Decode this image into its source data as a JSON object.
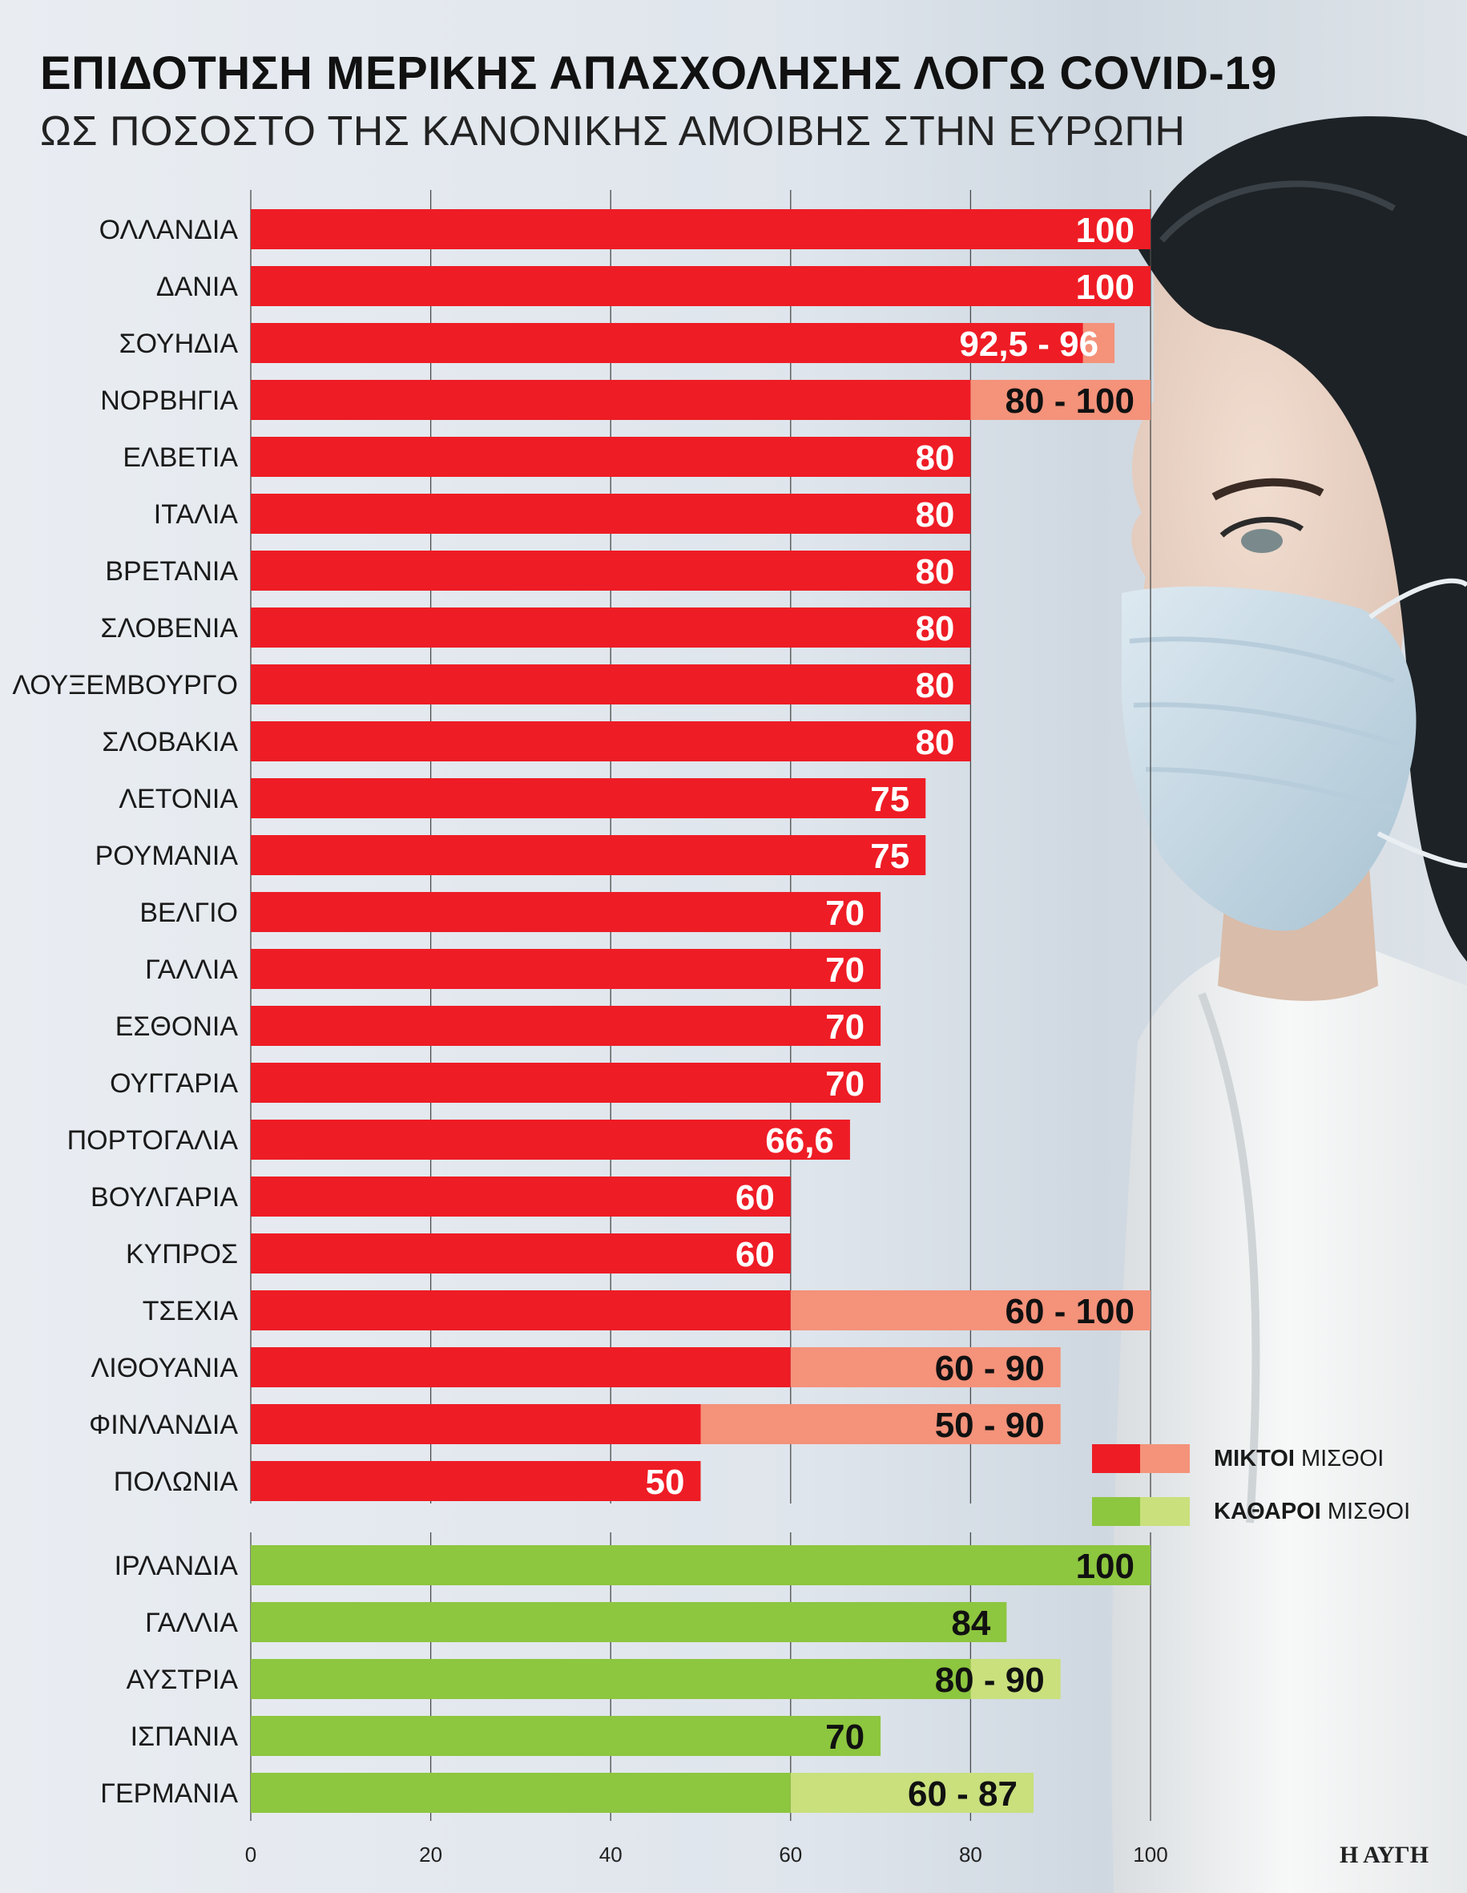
{
  "title": "ΕΠΙΔΟΤΗΣΗ ΜΕΡΙΚΗΣ ΑΠΑΣΧΟΛΗΣΗΣ ΛΟΓΩ COVID-19",
  "subtitle": "ΩΣ ΠΟΣΟΣΤΟ ΤΗΣ ΚΑΝΟΝΙΚΗΣ ΑΜΟΙΒΗΣ ΣΤΗΝ ΕΥΡΩΠΗ",
  "source": "Η ΑΥΓΗ",
  "colors": {
    "gross": "#ee1c25",
    "gross_range": "#f4927a",
    "net": "#8dc63f",
    "net_range": "#c9e07c"
  },
  "legend": [
    {
      "bold": "ΜΙΚΤΟΙ",
      "rest": " ΜΙΣΘΟΙ"
    },
    {
      "bold": "ΚΑΘΑΡΟΙ",
      "rest": " ΜΙΣΘΟΙ"
    }
  ],
  "chart_data": {
    "type": "bar",
    "orientation": "horizontal",
    "xlim": [
      0,
      100
    ],
    "xticks": [
      0,
      20,
      40,
      60,
      80,
      100
    ],
    "grid": true,
    "series": [
      {
        "name": "ΜΙΚΤΟΙ ΜΙΣΘΟΙ",
        "bars": [
          {
            "category": "ΟΛΛΑΝΔΙΑ",
            "min": 100,
            "max": 100,
            "label": "100"
          },
          {
            "category": "ΔΑΝΙΑ",
            "min": 100,
            "max": 100,
            "label": "100"
          },
          {
            "category": "ΣΟΥΗΔΙΑ",
            "min": 92.5,
            "max": 96,
            "label": "92,5 - 96"
          },
          {
            "category": "ΝΟΡΒΗΓΙΑ",
            "min": 80,
            "max": 100,
            "label": "80 - 100"
          },
          {
            "category": "ΕΛΒΕΤΙΑ",
            "min": 80,
            "max": 80,
            "label": "80"
          },
          {
            "category": "ΙΤΑΛΙΑ",
            "min": 80,
            "max": 80,
            "label": "80"
          },
          {
            "category": "ΒΡΕΤΑΝΙΑ",
            "min": 80,
            "max": 80,
            "label": "80"
          },
          {
            "category": "ΣΛΟΒΕΝΙΑ",
            "min": 80,
            "max": 80,
            "label": "80"
          },
          {
            "category": "ΛΟΥΞΕΜΒΟΥΡΓΟ",
            "min": 80,
            "max": 80,
            "label": "80"
          },
          {
            "category": "ΣΛΟΒΑΚΙΑ",
            "min": 80,
            "max": 80,
            "label": "80"
          },
          {
            "category": "ΛΕΤΟΝΙΑ",
            "min": 75,
            "max": 75,
            "label": "75"
          },
          {
            "category": "ΡΟΥΜΑΝΙΑ",
            "min": 75,
            "max": 75,
            "label": "75"
          },
          {
            "category": "ΒΕΛΓΙΟ",
            "min": 70,
            "max": 70,
            "label": "70"
          },
          {
            "category": "ΓΑΛΛΙΑ",
            "min": 70,
            "max": 70,
            "label": "70"
          },
          {
            "category": "ΕΣΘΟΝΙΑ",
            "min": 70,
            "max": 70,
            "label": "70"
          },
          {
            "category": "ΟΥΓΓΑΡΙΑ",
            "min": 70,
            "max": 70,
            "label": "70"
          },
          {
            "category": "ΠΟΡΤΟΓΑΛΙΑ",
            "min": 66.6,
            "max": 66.6,
            "label": "66,6"
          },
          {
            "category": "ΒΟΥΛΓΑΡΙΑ",
            "min": 60,
            "max": 60,
            "label": "60"
          },
          {
            "category": "ΚΥΠΡΟΣ",
            "min": 60,
            "max": 60,
            "label": "60"
          },
          {
            "category": "ΤΣΕΧΙΑ",
            "min": 60,
            "max": 100,
            "label": "60 - 100"
          },
          {
            "category": "ΛΙΘΟΥΑΝΙΑ",
            "min": 60,
            "max": 90,
            "label": "60 - 90"
          },
          {
            "category": "ΦΙΝΛΑΝΔΙΑ",
            "min": 50,
            "max": 90,
            "label": "50 - 90"
          },
          {
            "category": "ΠΟΛΩΝΙΑ",
            "min": 50,
            "max": 50,
            "label": "50"
          }
        ]
      },
      {
        "name": "ΚΑΘΑΡΟΙ ΜΙΣΘΟΙ",
        "bars": [
          {
            "category": "ΙΡΛΑΝΔΙΑ",
            "min": 100,
            "max": 100,
            "label": "100"
          },
          {
            "category": "ΓΑΛΛΙΑ",
            "min": 84,
            "max": 84,
            "label": "84"
          },
          {
            "category": "ΑΥΣΤΡΙΑ",
            "min": 80,
            "max": 90,
            "label": "80 - 90"
          },
          {
            "category": "ΙΣΠΑΝΙΑ",
            "min": 70,
            "max": 70,
            "label": "70"
          },
          {
            "category": "ΓΕΡΜΑΝΙΑ",
            "min": 60,
            "max": 87,
            "label": "60 - 87"
          }
        ]
      }
    ]
  }
}
